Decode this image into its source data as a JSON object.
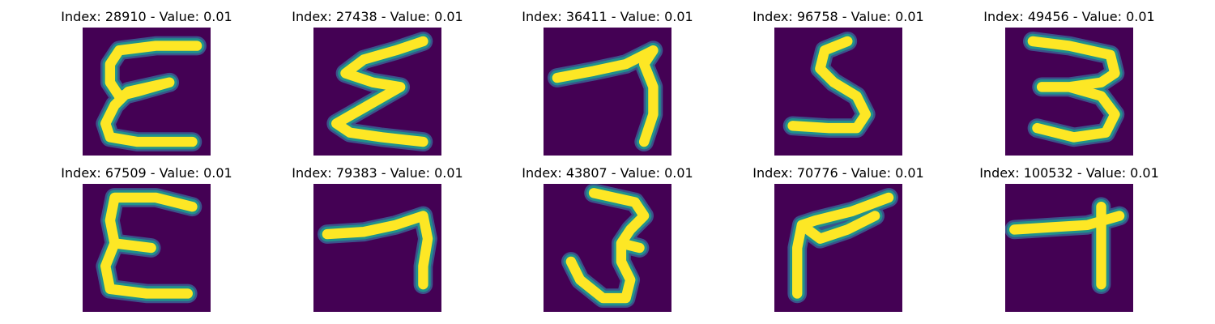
{
  "colors": {
    "background": "#440154",
    "stroke_mid": "#21918c",
    "stroke_core": "#fde725",
    "stroke_edge": "#3b528b"
  },
  "panels": [
    {
      "title": "Index: 28910 - Value: 0.01",
      "glyph": "E"
    },
    {
      "title": "Index: 27438 - Value: 0.01",
      "glyph": "Σ"
    },
    {
      "title": "Index: 36411 - Value: 0.01",
      "glyph": "7"
    },
    {
      "title": "Index: 96758 - Value: 0.01",
      "glyph": "S"
    },
    {
      "title": "Index: 49456 - Value: 0.01",
      "glyph": "3"
    },
    {
      "title": "Index: 67509 - Value: 0.01",
      "glyph": "E"
    },
    {
      "title": "Index: 79383 - Value: 0.01",
      "glyph": "7"
    },
    {
      "title": "Index: 43807 - Value: 0.01",
      "glyph": "3"
    },
    {
      "title": "Index: 70776 - Value: 0.01",
      "glyph": "V"
    },
    {
      "title": "Index: 100532 - Value: 0.01",
      "glyph": "T"
    }
  ]
}
